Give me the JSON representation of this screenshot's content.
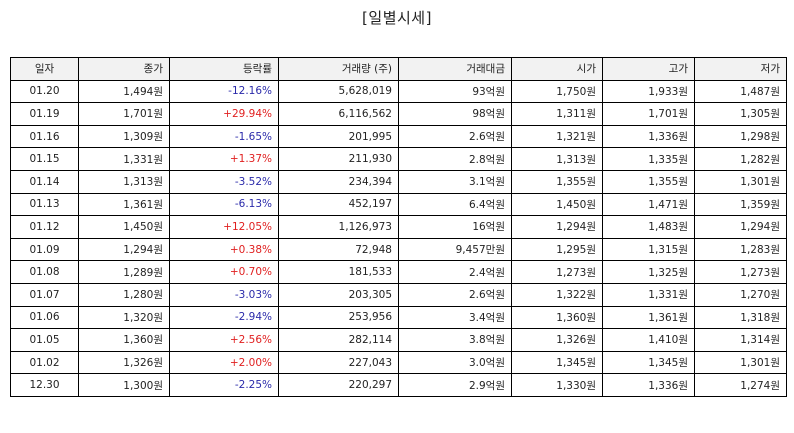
{
  "title": "[일별시세]",
  "headers": [
    "일자",
    "종가",
    "등락률",
    "거래량 (주)",
    "거래대금",
    "시가",
    "고가",
    "저가"
  ],
  "rows": [
    {
      "date": "01.20",
      "close": "1,494원",
      "change": "-12.16%",
      "dir": "down",
      "volume": "5,628,019",
      "amount": "93억원",
      "open": "1,750원",
      "high": "1,933원",
      "low": "1,487원"
    },
    {
      "date": "01.19",
      "close": "1,701원",
      "change": "+29.94%",
      "dir": "up",
      "volume": "6,116,562",
      "amount": "98억원",
      "open": "1,311원",
      "high": "1,701원",
      "low": "1,305원"
    },
    {
      "date": "01.16",
      "close": "1,309원",
      "change": "-1.65%",
      "dir": "down",
      "volume": "201,995",
      "amount": "2.6억원",
      "open": "1,321원",
      "high": "1,336원",
      "low": "1,298원"
    },
    {
      "date": "01.15",
      "close": "1,331원",
      "change": "+1.37%",
      "dir": "up",
      "volume": "211,930",
      "amount": "2.8억원",
      "open": "1,313원",
      "high": "1,335원",
      "low": "1,282원"
    },
    {
      "date": "01.14",
      "close": "1,313원",
      "change": "-3.52%",
      "dir": "down",
      "volume": "234,394",
      "amount": "3.1억원",
      "open": "1,355원",
      "high": "1,355원",
      "low": "1,301원"
    },
    {
      "date": "01.13",
      "close": "1,361원",
      "change": "-6.13%",
      "dir": "down",
      "volume": "452,197",
      "amount": "6.4억원",
      "open": "1,450원",
      "high": "1,471원",
      "low": "1,359원"
    },
    {
      "date": "01.12",
      "close": "1,450원",
      "change": "+12.05%",
      "dir": "up",
      "volume": "1,126,973",
      "amount": "16억원",
      "open": "1,294원",
      "high": "1,483원",
      "low": "1,294원"
    },
    {
      "date": "01.09",
      "close": "1,294원",
      "change": "+0.38%",
      "dir": "up",
      "volume": "72,948",
      "amount": "9,457만원",
      "open": "1,295원",
      "high": "1,315원",
      "low": "1,283원"
    },
    {
      "date": "01.08",
      "close": "1,289원",
      "change": "+0.70%",
      "dir": "up",
      "volume": "181,533",
      "amount": "2.4억원",
      "open": "1,273원",
      "high": "1,325원",
      "low": "1,273원"
    },
    {
      "date": "01.07",
      "close": "1,280원",
      "change": "-3.03%",
      "dir": "down",
      "volume": "203,305",
      "amount": "2.6억원",
      "open": "1,322원",
      "high": "1,331원",
      "low": "1,270원"
    },
    {
      "date": "01.06",
      "close": "1,320원",
      "change": "-2.94%",
      "dir": "down",
      "volume": "253,956",
      "amount": "3.4억원",
      "open": "1,360원",
      "high": "1,361원",
      "low": "1,318원"
    },
    {
      "date": "01.05",
      "close": "1,360원",
      "change": "+2.56%",
      "dir": "up",
      "volume": "282,114",
      "amount": "3.8억원",
      "open": "1,326원",
      "high": "1,410원",
      "low": "1,314원"
    },
    {
      "date": "01.02",
      "close": "1,326원",
      "change": "+2.00%",
      "dir": "up",
      "volume": "227,043",
      "amount": "3.0억원",
      "open": "1,345원",
      "high": "1,345원",
      "low": "1,301원"
    },
    {
      "date": "12.30",
      "close": "1,300원",
      "change": "-2.25%",
      "dir": "down",
      "volume": "220,297",
      "amount": "2.9억원",
      "open": "1,330원",
      "high": "1,336원",
      "low": "1,274원"
    }
  ],
  "colors": {
    "up": "#e02020",
    "down": "#2a2aaa"
  }
}
